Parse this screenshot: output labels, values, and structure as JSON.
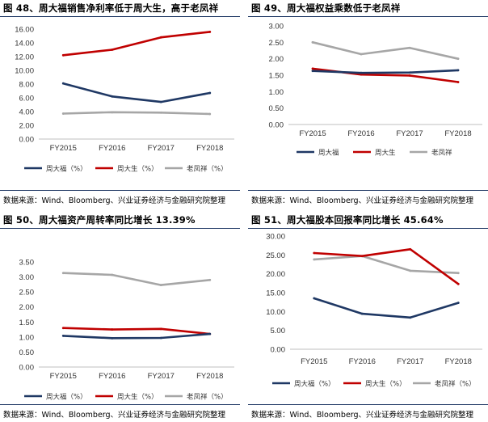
{
  "panels": [
    {
      "title": "图 48、周大福销售净利率低于周大生，高于老凤祥",
      "source": "数据来源：Wind、Bloomberg、兴业证券经济与金融研究院整理"
    },
    {
      "title": "图 49、周大福权益乘数低于老凤祥",
      "source": "数据来源：Wind、Bloomberg、兴业证券经济与金融研究院整理"
    },
    {
      "title": "图 50、周大福资产周转率同比增长 13.39%",
      "source": "数据来源：Wind、Bloomberg、兴业证券经济与金融研究院整理"
    },
    {
      "title": "图 51、周大福股本回报率同比增长 45.64%",
      "source": "数据来源：Wind、Bloomberg、兴业证券经济与金融研究院整理"
    }
  ],
  "colors": {
    "周大福": "#1f3864",
    "周大生": "#c00000",
    "老凤祥": "#a6a6a6",
    "rule": "#1f3864"
  },
  "chart_data": [
    {
      "type": "line",
      "title": "图 48、周大福销售净利率低于周大生，高于老凤祥",
      "categories": [
        "FY2015",
        "FY2016",
        "FY2017",
        "FY2018"
      ],
      "ylim": [
        0,
        16
      ],
      "yticks": [
        "0.00",
        "2.00",
        "4.00",
        "6.00",
        "8.00",
        "10.00",
        "12.00",
        "14.00",
        "16.00"
      ],
      "grid": false,
      "legend_position": "bottom",
      "series": [
        {
          "name": "周大福（%）",
          "color_key": "周大福",
          "values": [
            8.1,
            6.2,
            5.4,
            6.7
          ]
        },
        {
          "name": "周大生（%）",
          "color_key": "周大生",
          "values": [
            12.2,
            13.0,
            14.8,
            15.6
          ]
        },
        {
          "name": "老凤祥（%）",
          "color_key": "老凤祥",
          "values": [
            3.7,
            3.9,
            3.85,
            3.65
          ]
        }
      ]
    },
    {
      "type": "line",
      "title": "图 49、周大福权益乘数低于老凤祥",
      "categories": [
        "FY2015",
        "FY2016",
        "FY2017",
        "FY2018"
      ],
      "ylim": [
        0,
        3
      ],
      "yticks": [
        "0.00",
        "0.50",
        "1.00",
        "1.50",
        "2.00",
        "2.50",
        "3.00"
      ],
      "grid": false,
      "legend_position": "bottom",
      "series": [
        {
          "name": "周大福",
          "color_key": "周大福",
          "values": [
            1.63,
            1.57,
            1.58,
            1.65
          ]
        },
        {
          "name": "周大生",
          "color_key": "周大生",
          "values": [
            1.7,
            1.52,
            1.49,
            1.29
          ]
        },
        {
          "name": "老凤祥",
          "color_key": "老凤祥",
          "values": [
            2.5,
            2.14,
            2.33,
            2.0
          ]
        }
      ]
    },
    {
      "type": "line",
      "title": "图 50、周大福资产周转率同比增长 13.39%",
      "categories": [
        "FY2015",
        "FY2016",
        "FY2017",
        "FY2018"
      ],
      "ylim": [
        0,
        3.5
      ],
      "yticks": [
        "0.00",
        "0.50",
        "1.00",
        "1.50",
        "2.00",
        "2.50",
        "3.00",
        "3.50"
      ],
      "grid": false,
      "legend_position": "bottom",
      "series": [
        {
          "name": "周大福（%）",
          "color_key": "周大福",
          "values": [
            1.04,
            0.96,
            0.97,
            1.1
          ]
        },
        {
          "name": "周大生（%）",
          "color_key": "周大生",
          "values": [
            1.3,
            1.25,
            1.27,
            1.1
          ]
        },
        {
          "name": "老凤祥（%）",
          "color_key": "老凤祥",
          "values": [
            3.13,
            3.07,
            2.73,
            2.9
          ]
        }
      ]
    },
    {
      "type": "line",
      "title": "图 51、周大福股本回报率同比增长 45.64%",
      "categories": [
        "FY2015",
        "FY2016",
        "FY2017",
        "FY2018"
      ],
      "ylim": [
        0,
        30
      ],
      "yticks": [
        "0.00",
        "5.00",
        "10.00",
        "15.00",
        "20.00",
        "25.00",
        "30.00"
      ],
      "grid": false,
      "legend_position": "bottom",
      "series": [
        {
          "name": "周大福（%）",
          "color_key": "周大福",
          "values": [
            13.5,
            9.4,
            8.4,
            12.3
          ]
        },
        {
          "name": "周大生（%）",
          "color_key": "周大生",
          "values": [
            25.5,
            24.7,
            26.5,
            17.3
          ]
        },
        {
          "name": "老凤祥（%）",
          "color_key": "老凤祥",
          "values": [
            23.8,
            24.7,
            20.8,
            20.2
          ]
        }
      ]
    }
  ]
}
